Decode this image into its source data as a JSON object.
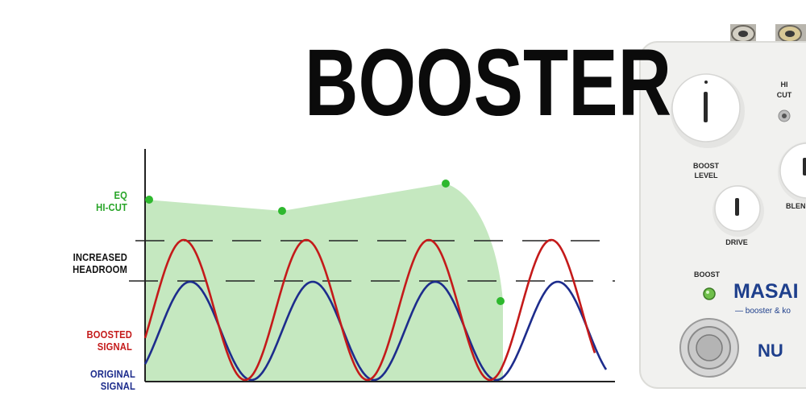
{
  "title": "BOOSTER",
  "labels": {
    "eq_line1": "EQ",
    "eq_line2": "HI-CUT",
    "headroom_line1": "INCREASED",
    "headroom_line2": "HEADROOM",
    "boosted_line1": "BOOSTED",
    "boosted_line2": "SIGNAL",
    "original_line1": "ORIGINAL",
    "original_line2": "SIGNAL"
  },
  "pedal": {
    "hi_cut_line1": "HI",
    "hi_cut_line2": "CUT",
    "boost_level_line1": "BOOST",
    "boost_level_line2": "LEVEL",
    "blend": "BLEN",
    "drive": "DRIVE",
    "boost": "BOOST",
    "brand": "MASAI",
    "subtitle": "— booster & ko",
    "logo": "NU"
  },
  "colors": {
    "eq_fill": "#c5e8c0",
    "eq_dot": "#2eb82e",
    "boosted": "#c41a1a",
    "original": "#1d2c8c",
    "headroom": "#222222",
    "pedal_body": "#f1f1ef",
    "pedal_brand": "#1e3f8c"
  }
}
